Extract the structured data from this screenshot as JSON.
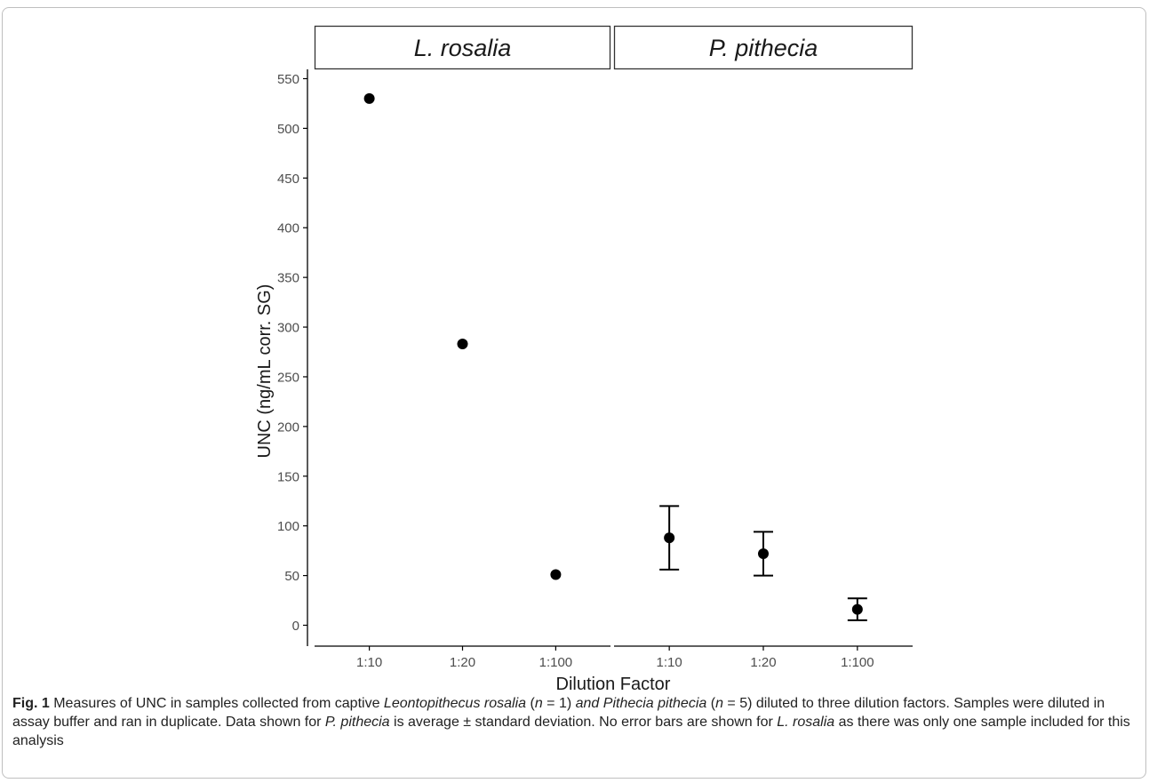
{
  "chart_data": {
    "type": "scatter",
    "facets": [
      {
        "label": "L. rosalia",
        "categories": [
          "1:10",
          "1:20",
          "1:100"
        ],
        "values": [
          530,
          283,
          51
        ],
        "error": null
      },
      {
        "label": "P. pithecia",
        "categories": [
          "1:10",
          "1:20",
          "1:100"
        ],
        "values": [
          88,
          72,
          16
        ],
        "error": [
          32,
          22,
          11
        ]
      }
    ],
    "xlabel": "Dilution Factor",
    "ylabel": "UNC (ng/mL corr. SG)",
    "ylim": [
      -20,
      560
    ],
    "yticks": [
      0,
      50,
      100,
      150,
      200,
      250,
      300,
      350,
      400,
      450,
      500,
      550
    ],
    "grid": false,
    "colors": {
      "point": "#000000",
      "axis": "#000000",
      "tick_label": "#4d4d4d",
      "strip_bg": "#ffffff"
    }
  },
  "caption": {
    "fig": "Fig. 1",
    "parts": [
      {
        "text": " Measures of UNC in samples collected from captive ",
        "italic": false
      },
      {
        "text": "Leontopithecus rosalia",
        "italic": true
      },
      {
        "text": " (",
        "italic": false
      },
      {
        "text": "n",
        "italic": true
      },
      {
        "text": " = 1) ",
        "italic": false
      },
      {
        "text": "and Pithecia pithecia",
        "italic": true
      },
      {
        "text": " (",
        "italic": false
      },
      {
        "text": "n",
        "italic": true
      },
      {
        "text": " = 5) diluted to three dilution factors. Samples were diluted in assay buffer and ran in duplicate. Data shown for ",
        "italic": false
      },
      {
        "text": "P. pithecia",
        "italic": true
      },
      {
        "text": " is average ± standard deviation. No error bars are shown for ",
        "italic": false
      },
      {
        "text": "L. rosalia",
        "italic": true
      },
      {
        "text": " as there was only one sample included for this analysis",
        "italic": false
      }
    ]
  }
}
